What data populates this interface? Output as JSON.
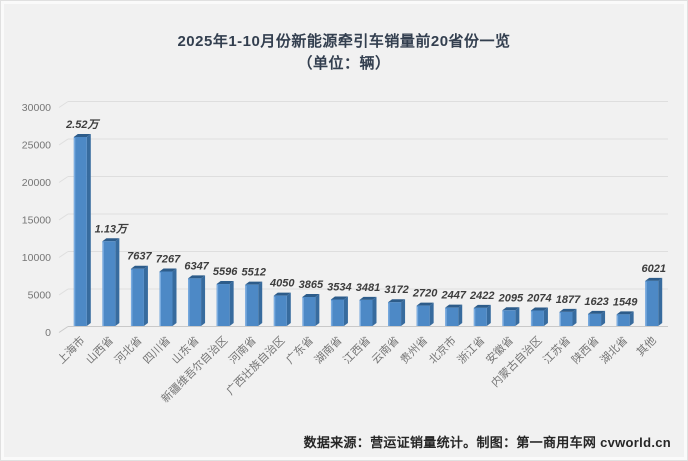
{
  "title": {
    "line1": "2025年1-10月份新能源牵引车销量前20省份一览",
    "line2": "（单位：辆）"
  },
  "footer": {
    "text": "数据来源：营运证销量统计。制图：第一商用车网 cvworld.cn"
  },
  "chart_data": {
    "type": "bar",
    "title": "2025年1-10月份新能源牵引车销量前20省份一览",
    "subtitle": "（单位：辆）",
    "categories": [
      "上海市",
      "山西省",
      "河北省",
      "四川省",
      "山东省",
      "新疆维吾尔自治区",
      "河南省",
      "广西壮族自治区",
      "广东省",
      "湖南省",
      "江西省",
      "云南省",
      "贵州省",
      "北京市",
      "浙江省",
      "安徽省",
      "内蒙古自治区",
      "江苏省",
      "陕西省",
      "湖北省",
      "其他"
    ],
    "values": [
      25200,
      11300,
      7637,
      7267,
      6347,
      5596,
      5512,
      4050,
      3865,
      3534,
      3481,
      3172,
      2720,
      2447,
      2422,
      2095,
      2074,
      1877,
      1623,
      1549,
      6021
    ],
    "value_labels": [
      "2.52万",
      "1.13万",
      "7637",
      "7267",
      "6347",
      "5596",
      "5512",
      "4050",
      "3865",
      "3534",
      "3481",
      "3172",
      "2720",
      "2447",
      "2422",
      "2095",
      "2074",
      "1877",
      "1623",
      "1549",
      "6021"
    ],
    "xlabel": "",
    "ylabel": "",
    "ylim": [
      0,
      30000
    ],
    "yticks": [
      0,
      5000,
      10000,
      15000,
      20000,
      25000,
      30000
    ],
    "grid": true,
    "legend": false,
    "style": "excel-3d-column",
    "colors": {
      "background": "#f1f1f1",
      "bar_front": "#4d89c6",
      "bar_front_highlight": "#7aace0",
      "bar_side": "#376b9e",
      "bar_top": "#2d5c8a",
      "gridline": "#dedede",
      "baseline": "#c9c9c9",
      "axis_text": "#757575",
      "value_text": "#3d3d3d",
      "title_text": "#333f4f"
    }
  }
}
